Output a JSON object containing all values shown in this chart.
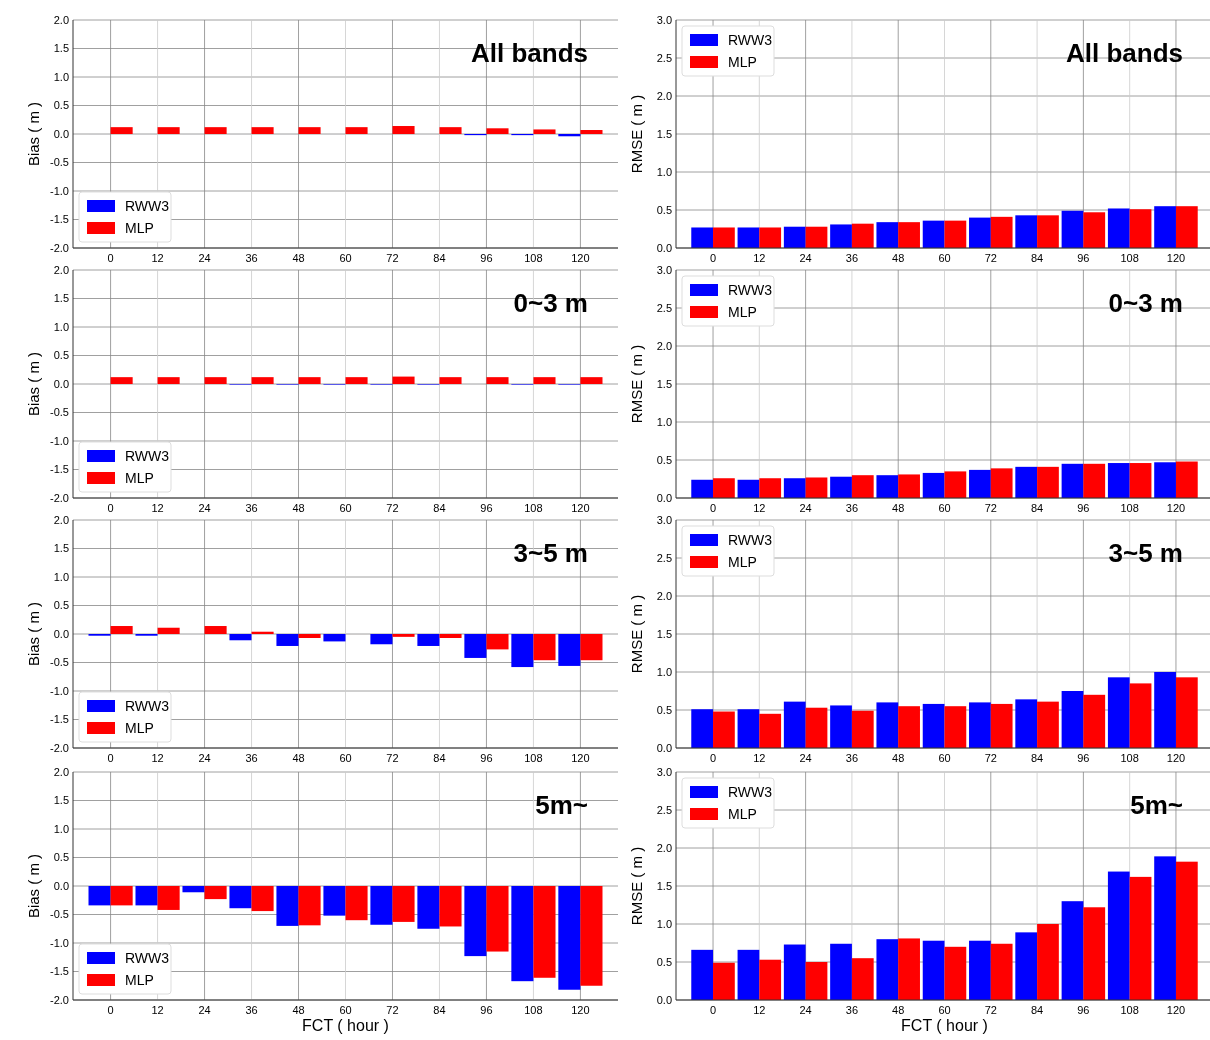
{
  "chart_data": [
    {
      "type": "bar",
      "title": "All bands",
      "ylabel": "Bias ( m )",
      "categories": [
        "0",
        "12",
        "24",
        "36",
        "48",
        "60",
        "72",
        "84",
        "96",
        "108",
        "120"
      ],
      "ylim": [
        -2,
        2
      ],
      "yticks": [
        {
          "value": -2,
          "label": "-2.0"
        },
        {
          "value": -1.5,
          "label": "-1.5"
        },
        {
          "value": -1,
          "label": "-1.0"
        },
        {
          "value": -0.5,
          "label": "-0.5"
        },
        {
          "value": 0,
          "label": "0.0"
        },
        {
          "value": 0.5,
          "label": "0.5"
        },
        {
          "value": 1,
          "label": "1.0"
        },
        {
          "value": 1.5,
          "label": "1.5"
        },
        {
          "value": 2,
          "label": "2.0"
        }
      ],
      "grid": true,
      "legend": "bottom left",
      "series": [
        {
          "name": "RWW3",
          "color": "#0000ff",
          "values": [
            0,
            0,
            0,
            0,
            0,
            0,
            0,
            0,
            -0.02,
            -0.02,
            -0.04
          ]
        },
        {
          "name": "MLP",
          "color": "#ff0000",
          "values": [
            0.12,
            0.12,
            0.12,
            0.12,
            0.12,
            0.12,
            0.14,
            0.12,
            0.1,
            0.08,
            0.07
          ]
        }
      ]
    },
    {
      "type": "bar",
      "title": "All bands",
      "ylabel": "RMSE ( m )",
      "categories": [
        "0",
        "12",
        "24",
        "36",
        "48",
        "60",
        "72",
        "84",
        "96",
        "108",
        "120"
      ],
      "ylim": [
        0,
        3
      ],
      "yticks": [
        {
          "value": 0,
          "label": "0.0"
        },
        {
          "value": 0.5,
          "label": "0.5"
        },
        {
          "value": 1,
          "label": "1.0"
        },
        {
          "value": 1.5,
          "label": "1.5"
        },
        {
          "value": 2,
          "label": "2.0"
        },
        {
          "value": 2.5,
          "label": "2.5"
        },
        {
          "value": 3,
          "label": "3.0"
        }
      ],
      "grid": true,
      "legend": "top left",
      "series": [
        {
          "name": "RWW3",
          "color": "#0000ff",
          "values": [
            0.27,
            0.27,
            0.28,
            0.31,
            0.34,
            0.36,
            0.4,
            0.43,
            0.49,
            0.52,
            0.55
          ]
        },
        {
          "name": "MLP",
          "color": "#ff0000",
          "values": [
            0.27,
            0.27,
            0.28,
            0.32,
            0.34,
            0.36,
            0.41,
            0.43,
            0.47,
            0.51,
            0.55
          ]
        }
      ]
    },
    {
      "type": "bar",
      "title": "0~3 m",
      "ylabel": "Bias ( m )",
      "categories": [
        "0",
        "12",
        "24",
        "36",
        "48",
        "60",
        "72",
        "84",
        "96",
        "108",
        "120"
      ],
      "ylim": [
        -2,
        2
      ],
      "yticks": [
        {
          "value": -2,
          "label": "-2.0"
        },
        {
          "value": -1.5,
          "label": "-1.5"
        },
        {
          "value": -1,
          "label": "-1.0"
        },
        {
          "value": -0.5,
          "label": "-0.5"
        },
        {
          "value": 0,
          "label": "0.0"
        },
        {
          "value": 0.5,
          "label": "0.5"
        },
        {
          "value": 1,
          "label": "1.0"
        },
        {
          "value": 1.5,
          "label": "1.5"
        },
        {
          "value": 2,
          "label": "2.0"
        }
      ],
      "grid": true,
      "legend": "bottom left",
      "series": [
        {
          "name": "RWW3",
          "color": "#0000ff",
          "values": [
            0,
            0,
            0,
            -0.01,
            -0.01,
            -0.01,
            -0.01,
            -0.01,
            0,
            -0.01,
            -0.01
          ]
        },
        {
          "name": "MLP",
          "color": "#ff0000",
          "values": [
            0.12,
            0.12,
            0.12,
            0.12,
            0.12,
            0.12,
            0.13,
            0.12,
            0.12,
            0.12,
            0.12
          ]
        }
      ]
    },
    {
      "type": "bar",
      "title": "0~3 m",
      "ylabel": "RMSE ( m )",
      "categories": [
        "0",
        "12",
        "24",
        "36",
        "48",
        "60",
        "72",
        "84",
        "96",
        "108",
        "120"
      ],
      "ylim": [
        0,
        3
      ],
      "yticks": [
        {
          "value": 0,
          "label": "0.0"
        },
        {
          "value": 0.5,
          "label": "0.5"
        },
        {
          "value": 1,
          "label": "1.0"
        },
        {
          "value": 1.5,
          "label": "1.5"
        },
        {
          "value": 2,
          "label": "2.0"
        },
        {
          "value": 2.5,
          "label": "2.5"
        },
        {
          "value": 3,
          "label": "3.0"
        }
      ],
      "grid": true,
      "legend": "top left",
      "series": [
        {
          "name": "RWW3",
          "color": "#0000ff",
          "values": [
            0.24,
            0.24,
            0.26,
            0.28,
            0.3,
            0.33,
            0.37,
            0.41,
            0.45,
            0.46,
            0.47
          ]
        },
        {
          "name": "MLP",
          "color": "#ff0000",
          "values": [
            0.26,
            0.26,
            0.27,
            0.3,
            0.31,
            0.35,
            0.39,
            0.41,
            0.45,
            0.46,
            0.48
          ]
        }
      ]
    },
    {
      "type": "bar",
      "title": "3~5 m",
      "ylabel": "Bias ( m )",
      "categories": [
        "0",
        "12",
        "24",
        "36",
        "48",
        "60",
        "72",
        "84",
        "96",
        "108",
        "120"
      ],
      "ylim": [
        -2,
        2
      ],
      "yticks": [
        {
          "value": -2,
          "label": "-2.0"
        },
        {
          "value": -1.5,
          "label": "-1.5"
        },
        {
          "value": -1,
          "label": "-1.0"
        },
        {
          "value": -0.5,
          "label": "-0.5"
        },
        {
          "value": 0,
          "label": "0.0"
        },
        {
          "value": 0.5,
          "label": "0.5"
        },
        {
          "value": 1,
          "label": "1.0"
        },
        {
          "value": 1.5,
          "label": "1.5"
        },
        {
          "value": 2,
          "label": "2.0"
        }
      ],
      "grid": true,
      "legend": "bottom left",
      "series": [
        {
          "name": "RWW3",
          "color": "#0000ff",
          "values": [
            -0.03,
            -0.03,
            0,
            -0.11,
            -0.21,
            -0.13,
            -0.18,
            -0.21,
            -0.42,
            -0.58,
            -0.56
          ]
        },
        {
          "name": "MLP",
          "color": "#ff0000",
          "values": [
            0.14,
            0.11,
            0.14,
            0.04,
            -0.07,
            0,
            -0.05,
            -0.07,
            -0.27,
            -0.46,
            -0.46
          ]
        }
      ]
    },
    {
      "type": "bar",
      "title": "3~5 m",
      "ylabel": "RMSE ( m )",
      "categories": [
        "0",
        "12",
        "24",
        "36",
        "48",
        "60",
        "72",
        "84",
        "96",
        "108",
        "120"
      ],
      "ylim": [
        0,
        3
      ],
      "yticks": [
        {
          "value": 0,
          "label": "0.0"
        },
        {
          "value": 0.5,
          "label": "0.5"
        },
        {
          "value": 1,
          "label": "1.0"
        },
        {
          "value": 1.5,
          "label": "1.5"
        },
        {
          "value": 2,
          "label": "2.0"
        },
        {
          "value": 2.5,
          "label": "2.5"
        },
        {
          "value": 3,
          "label": "3.0"
        }
      ],
      "grid": true,
      "legend": "top left",
      "series": [
        {
          "name": "RWW3",
          "color": "#0000ff",
          "values": [
            0.51,
            0.51,
            0.61,
            0.56,
            0.6,
            0.58,
            0.6,
            0.64,
            0.75,
            0.93,
            1.0
          ]
        },
        {
          "name": "MLP",
          "color": "#ff0000",
          "values": [
            0.48,
            0.45,
            0.53,
            0.49,
            0.55,
            0.55,
            0.58,
            0.61,
            0.7,
            0.85,
            0.93
          ]
        }
      ]
    },
    {
      "type": "bar",
      "title": "5m~",
      "xlabel": "FCT ( hour )",
      "ylabel": "Bias ( m )",
      "categories": [
        "0",
        "12",
        "24",
        "36",
        "48",
        "60",
        "72",
        "84",
        "96",
        "108",
        "120"
      ],
      "ylim": [
        -2,
        2
      ],
      "yticks": [
        {
          "value": -2,
          "label": "-2.0"
        },
        {
          "value": -1.5,
          "label": "-1.5"
        },
        {
          "value": -1,
          "label": "-1.0"
        },
        {
          "value": -0.5,
          "label": "-0.5"
        },
        {
          "value": 0,
          "label": "0.0"
        },
        {
          "value": 0.5,
          "label": "0.5"
        },
        {
          "value": 1,
          "label": "1.0"
        },
        {
          "value": 1.5,
          "label": "1.5"
        },
        {
          "value": 2,
          "label": "2.0"
        }
      ],
      "grid": true,
      "legend": "bottom left",
      "series": [
        {
          "name": "RWW3",
          "color": "#0000ff",
          "values": [
            -0.34,
            -0.34,
            -0.11,
            -0.39,
            -0.7,
            -0.52,
            -0.68,
            -0.75,
            -1.23,
            -1.67,
            -1.82
          ]
        },
        {
          "name": "MLP",
          "color": "#ff0000",
          "values": [
            -0.34,
            -0.42,
            -0.23,
            -0.44,
            -0.69,
            -0.6,
            -0.63,
            -0.71,
            -1.15,
            -1.61,
            -1.75
          ]
        }
      ]
    },
    {
      "type": "bar",
      "title": "5m~",
      "xlabel": "FCT ( hour )",
      "ylabel": "RMSE ( m )",
      "categories": [
        "0",
        "12",
        "24",
        "36",
        "48",
        "60",
        "72",
        "84",
        "96",
        "108",
        "120"
      ],
      "ylim": [
        0,
        3
      ],
      "yticks": [
        {
          "value": 0,
          "label": "0.0"
        },
        {
          "value": 0.5,
          "label": "0.5"
        },
        {
          "value": 1,
          "label": "1.0"
        },
        {
          "value": 1.5,
          "label": "1.5"
        },
        {
          "value": 2,
          "label": "2.0"
        },
        {
          "value": 2.5,
          "label": "2.5"
        },
        {
          "value": 3,
          "label": "3.0"
        }
      ],
      "grid": true,
      "legend": "top left",
      "series": [
        {
          "name": "RWW3",
          "color": "#0000ff",
          "values": [
            0.66,
            0.66,
            0.73,
            0.74,
            0.8,
            0.78,
            0.78,
            0.89,
            1.3,
            1.69,
            1.89
          ]
        },
        {
          "name": "MLP",
          "color": "#ff0000",
          "values": [
            0.49,
            0.53,
            0.5,
            0.55,
            0.81,
            0.7,
            0.74,
            1.0,
            1.22,
            1.62,
            1.82
          ]
        }
      ]
    }
  ]
}
